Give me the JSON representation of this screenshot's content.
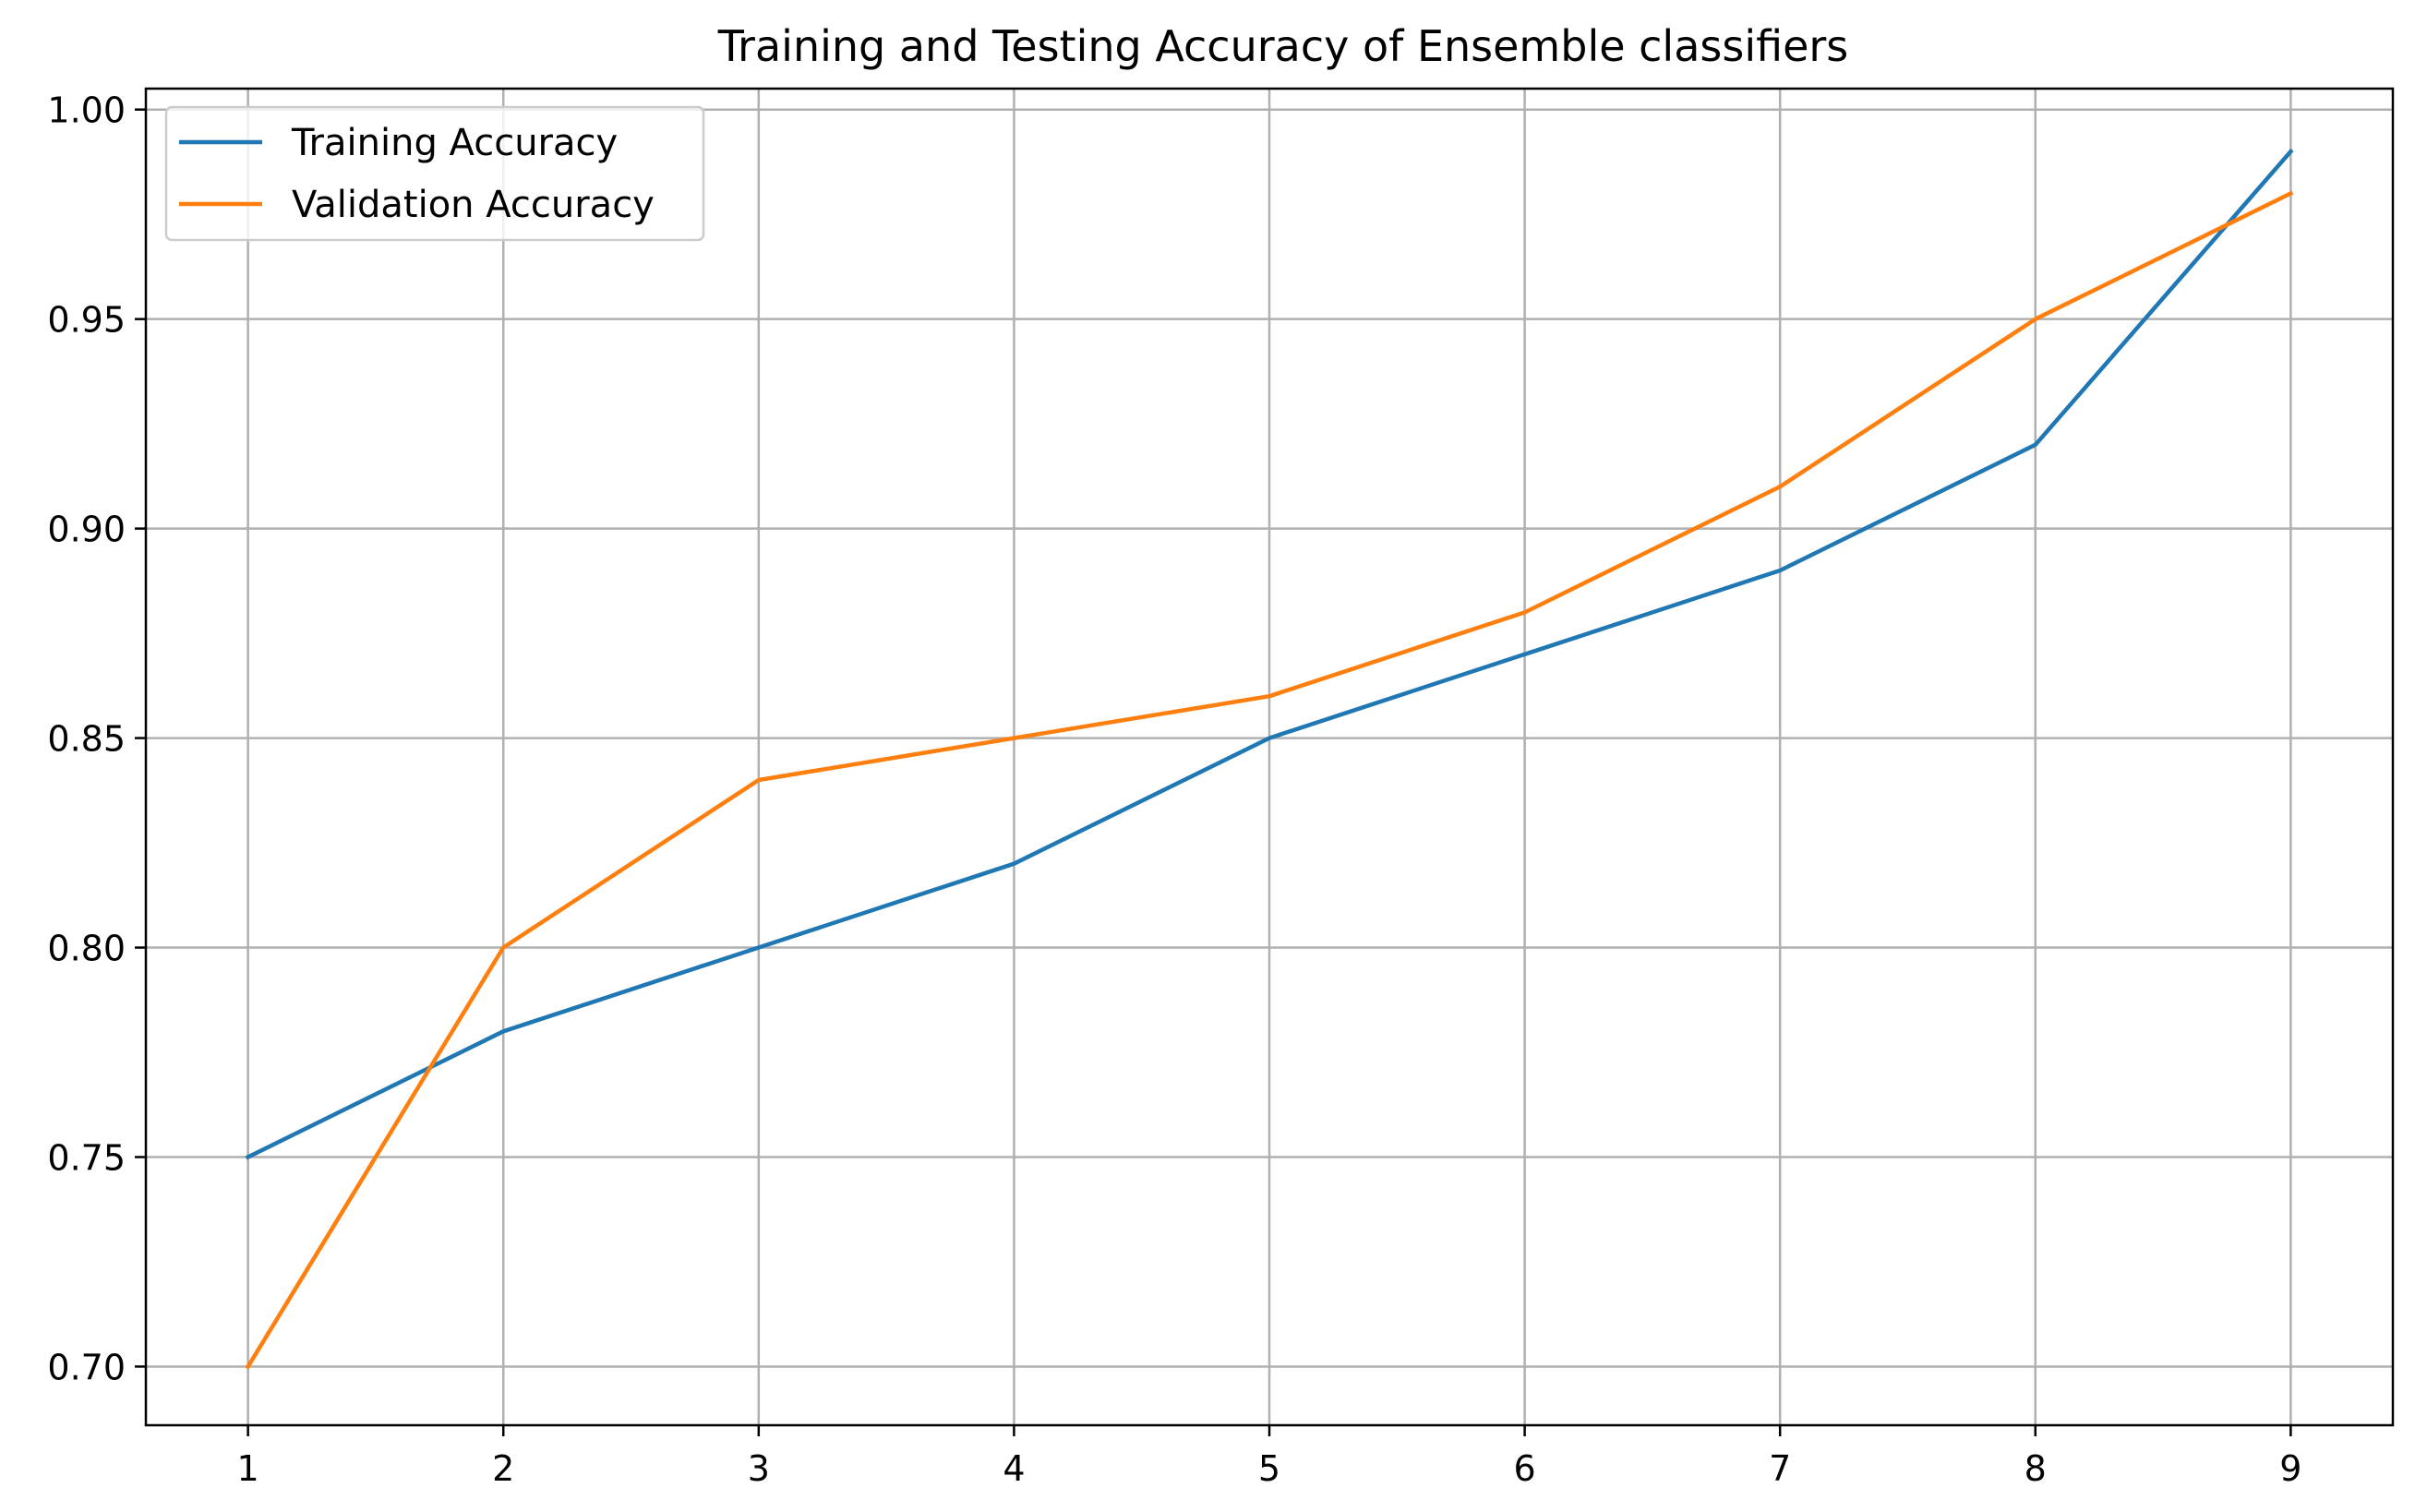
{
  "chart_data": {
    "type": "line",
    "title": "Training and Testing Accuracy of Ensemble classifiers",
    "xlabel": "",
    "ylabel": "",
    "x": [
      1,
      2,
      3,
      4,
      5,
      6,
      7,
      8,
      9
    ],
    "xticks": [
      "1",
      "2",
      "3",
      "4",
      "5",
      "6",
      "7",
      "8",
      "9"
    ],
    "yticks": [
      "0.70",
      "0.75",
      "0.80",
      "0.85",
      "0.90",
      "0.95",
      "1.00"
    ],
    "ytick_values": [
      0.7,
      0.75,
      0.8,
      0.85,
      0.9,
      0.95,
      1.0
    ],
    "xlim": [
      0.6,
      9.4
    ],
    "ylim": [
      0.686,
      1.005
    ],
    "grid": true,
    "legend_position": "top-left",
    "series": [
      {
        "name": "Training Accuracy",
        "color": "#1f77b4",
        "values": [
          0.75,
          0.78,
          0.8,
          0.82,
          0.85,
          0.87,
          0.89,
          0.92,
          0.99
        ]
      },
      {
        "name": "Validation Accuracy",
        "color": "#ff7f0e",
        "values": [
          0.7,
          0.8,
          0.84,
          0.85,
          0.86,
          0.88,
          0.91,
          0.95,
          0.98
        ]
      }
    ]
  }
}
